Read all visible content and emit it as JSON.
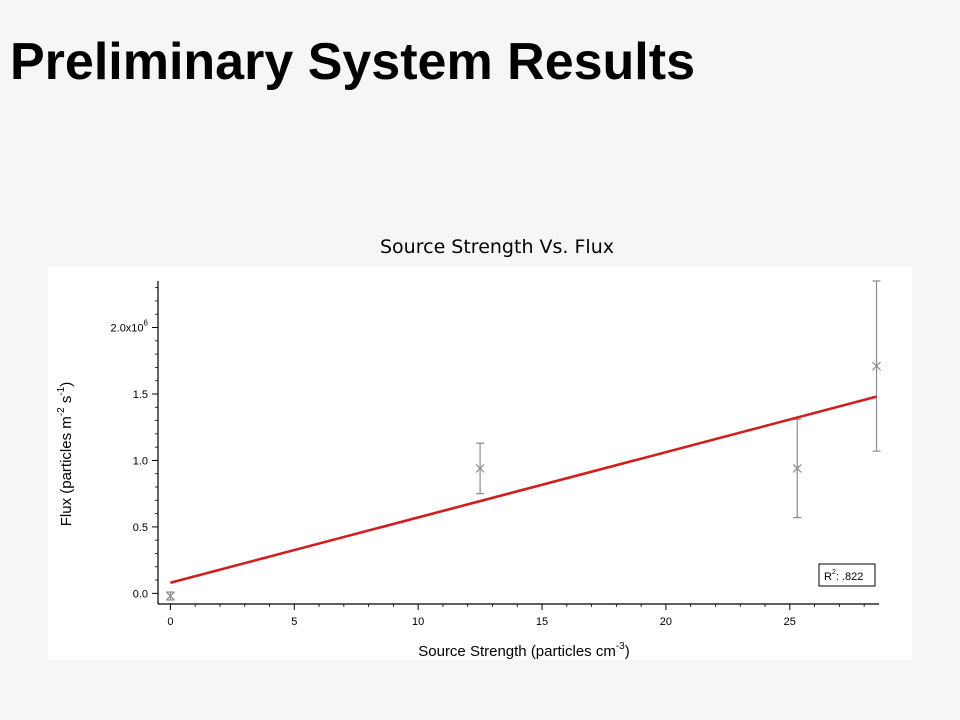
{
  "slide": {
    "title": "Preliminary System Results"
  },
  "chart_data": {
    "type": "scatter",
    "title": "Source Strength Vs. Flux",
    "xlabel": {
      "text": "Source Strength (particles cm",
      "sup": "-3",
      "close": ")"
    },
    "ylabel": {
      "text": "Flux (particles m",
      "sup1": "-2",
      "mid": " s",
      "sup2": "-1",
      "close": ")"
    },
    "xlim": [
      -0.5,
      28.6
    ],
    "ylim": [
      -0.08,
      2.35
    ],
    "y_scale_factor": 1000000,
    "x_ticks": [
      0,
      5,
      10,
      15,
      20,
      25
    ],
    "x_tick_labels": [
      "0",
      "5",
      "10",
      "15",
      "20",
      "25"
    ],
    "y_ticks": [
      0,
      0.5,
      1.0,
      1.5,
      2.0
    ],
    "y_tick_labels": [
      "0.0",
      "0.5",
      "1.0",
      "1.5",
      "2.0x10"
    ],
    "y_top_exponent": "6",
    "grid": false,
    "series": [
      {
        "type": "scatter",
        "marker": "x",
        "color": "#8c8c8c",
        "points": [
          {
            "x": 0.0,
            "y": -0.02,
            "err_low": 0.03,
            "err_high": 0.03
          },
          {
            "x": 12.5,
            "y": 0.94,
            "err_low": 0.19,
            "err_high": 0.19
          },
          {
            "x": 25.3,
            "y": 0.94,
            "err_low": 0.37,
            "err_high": 0.37
          },
          {
            "x": 28.5,
            "y": 1.71,
            "err_low": 0.64,
            "err_high": 0.64
          }
        ]
      },
      {
        "type": "line",
        "color": "#d01f1f",
        "points": [
          {
            "x": 0.0,
            "y": 0.08
          },
          {
            "x": 28.5,
            "y": 1.48
          }
        ]
      }
    ],
    "annotation": {
      "label": "R",
      "sup": "2",
      "value": ": .822"
    }
  }
}
